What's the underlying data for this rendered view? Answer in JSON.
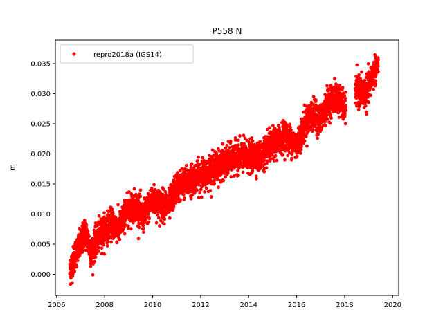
{
  "chart_data": {
    "type": "scatter",
    "title": "P558 N",
    "xlabel": "",
    "ylabel": "m",
    "xlim": [
      2005.95,
      2020.25
    ],
    "ylim": [
      -0.0035,
      0.0389
    ],
    "xticks": [
      2006,
      2008,
      2010,
      2012,
      2014,
      2016,
      2018,
      2020
    ],
    "xtick_labels": [
      "2006",
      "2008",
      "2010",
      "2012",
      "2014",
      "2016",
      "2018",
      "2020"
    ],
    "yticks": [
      0.0,
      0.005,
      0.01,
      0.015,
      0.02,
      0.025,
      0.03,
      0.035
    ],
    "ytick_labels": [
      "0.000",
      "0.005",
      "0.010",
      "0.015",
      "0.020",
      "0.025",
      "0.030",
      "0.035"
    ],
    "legend": {
      "placement": "upper-left",
      "entries": [
        "repro2018a (IGS14)"
      ]
    },
    "grid": false,
    "series": [
      {
        "name": "repro2018a (IGS14)",
        "color": "#ff0000",
        "marker": "circle",
        "trend_points": [
          [
            2006.55,
            0.0005
          ],
          [
            2006.8,
            0.0035
          ],
          [
            2007.0,
            0.005
          ],
          [
            2007.2,
            0.007
          ],
          [
            2007.45,
            0.0035
          ],
          [
            2007.7,
            0.006
          ],
          [
            2008.0,
            0.0075
          ],
          [
            2008.3,
            0.0085
          ],
          [
            2008.6,
            0.0075
          ],
          [
            2008.9,
            0.0105
          ],
          [
            2009.3,
            0.0115
          ],
          [
            2009.6,
            0.0095
          ],
          [
            2010.0,
            0.0125
          ],
          [
            2010.3,
            0.0115
          ],
          [
            2010.7,
            0.0115
          ],
          [
            2011.0,
            0.0145
          ],
          [
            2011.5,
            0.0155
          ],
          [
            2012.0,
            0.0165
          ],
          [
            2012.5,
            0.0175
          ],
          [
            2013.0,
            0.0185
          ],
          [
            2013.5,
            0.0195
          ],
          [
            2014.0,
            0.0195
          ],
          [
            2014.5,
            0.0195
          ],
          [
            2015.0,
            0.0215
          ],
          [
            2015.5,
            0.023
          ],
          [
            2016.0,
            0.0215
          ],
          [
            2016.3,
            0.0245
          ],
          [
            2016.6,
            0.0265
          ],
          [
            2017.0,
            0.0255
          ],
          [
            2017.3,
            0.0285
          ],
          [
            2017.7,
            0.0295
          ],
          [
            2018.0,
            0.0275
          ],
          [
            2018.5,
            0.0305
          ],
          [
            2018.9,
            0.03
          ],
          [
            2019.2,
            0.0335
          ],
          [
            2019.4,
            0.035
          ]
        ],
        "gaps": [
          [
            2018.05,
            2018.45
          ]
        ]
      }
    ]
  }
}
